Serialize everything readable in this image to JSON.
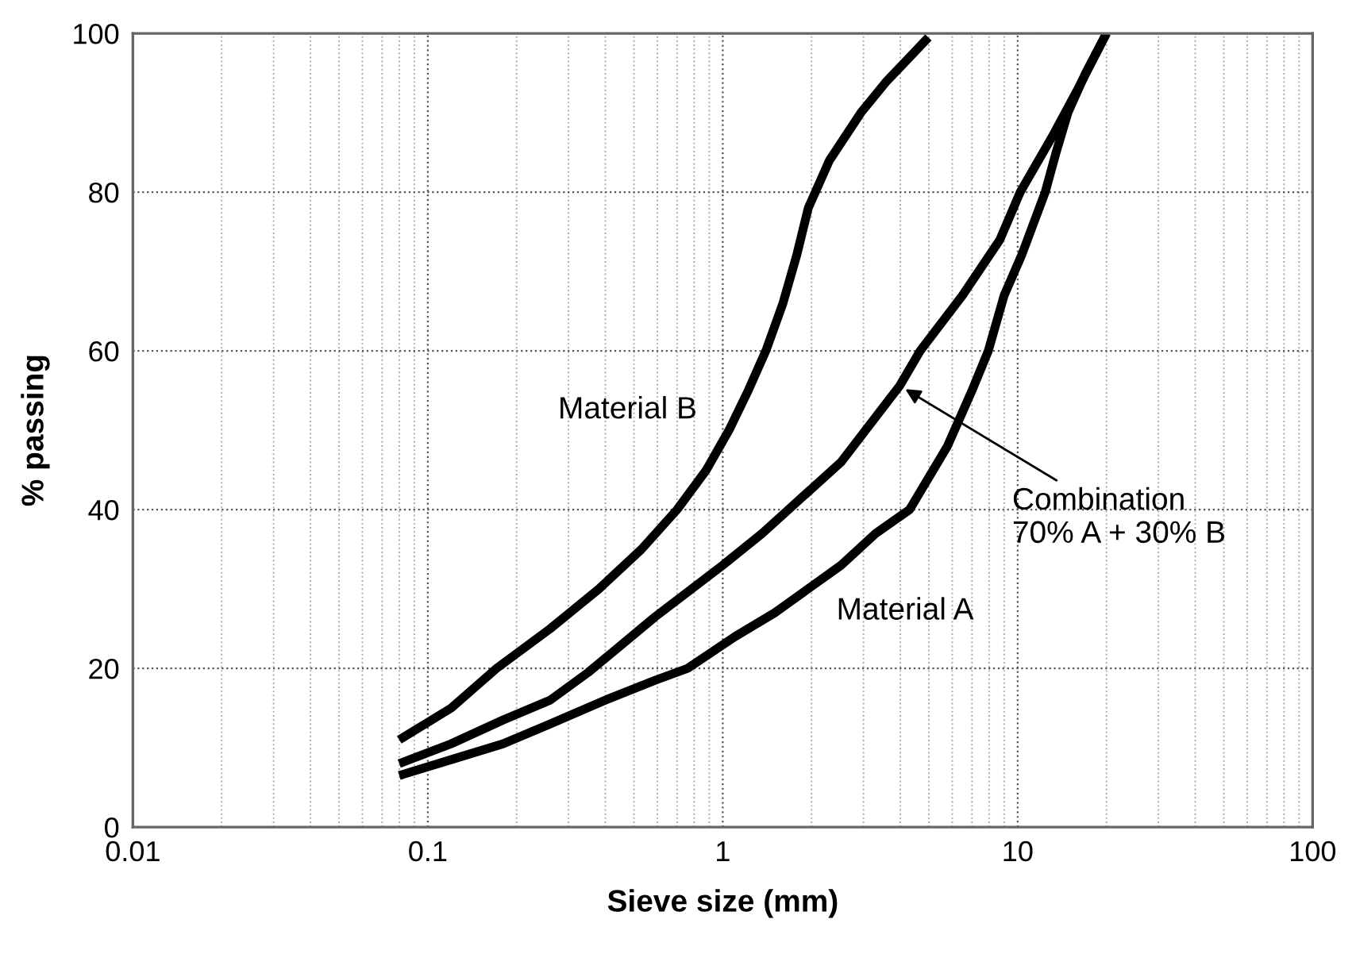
{
  "chart_data": {
    "type": "line",
    "xlabel": "Sieve size (mm)",
    "ylabel": "% passing",
    "log": "x",
    "grid": true,
    "line_style": "solid",
    "marker": "none",
    "xlim": [
      0.01,
      100
    ],
    "xticks": [
      0.01,
      0.1,
      1,
      10,
      100
    ],
    "ylim": [
      0,
      100
    ],
    "yticks": [
      0,
      20,
      40,
      60,
      80,
      100
    ],
    "series": [
      {
        "name": "Material B",
        "color": "#000000",
        "x": [
          0.08,
          0.12,
          0.171,
          0.26,
          0.38,
          0.53,
          0.7,
          0.88,
          1.05,
          1.22,
          1.4,
          1.6,
          1.78,
          1.95,
          2.3,
          2.94,
          3.6,
          4.3,
          4.98
        ],
        "values": [
          11,
          15,
          20,
          25,
          30,
          35,
          40,
          45,
          50,
          55,
          60,
          66,
          72,
          78,
          84,
          90,
          94,
          97,
          99.5
        ]
      },
      {
        "color": "#000000",
        "x": [
          0.08,
          0.12,
          0.18,
          0.26,
          0.35,
          0.59,
          1.0,
          1.36,
          1.67,
          2.52,
          3.98,
          4.67,
          6.5,
          8.7,
          10.2,
          13.1,
          16,
          20
        ],
        "values": [
          8,
          10.5,
          13.5,
          16,
          19.5,
          26.5,
          33,
          37,
          40,
          46,
          55.6,
          60,
          67,
          74,
          80,
          87,
          93,
          100
        ]
      },
      {
        "name": "Material A",
        "color": "#000000",
        "x": [
          0.08,
          0.12,
          0.18,
          0.26,
          0.4,
          0.59,
          0.76,
          1.1,
          1.5,
          2.52,
          3.3,
          4.3,
          5.78,
          7.0,
          7.95,
          9.0,
          10.3,
          11.3,
          12.4,
          13.5,
          14.8,
          17,
          20
        ],
        "values": [
          6.5,
          8.5,
          10.5,
          13,
          16,
          18.5,
          20,
          24,
          27,
          33,
          37,
          40,
          48,
          55,
          60,
          67,
          72,
          76,
          80,
          85,
          90,
          95,
          100
        ]
      }
    ],
    "annotations": [
      {
        "text": "Combination\n70% A + 30% B",
        "x": 3.98,
        "y": 55.6
      }
    ]
  }
}
